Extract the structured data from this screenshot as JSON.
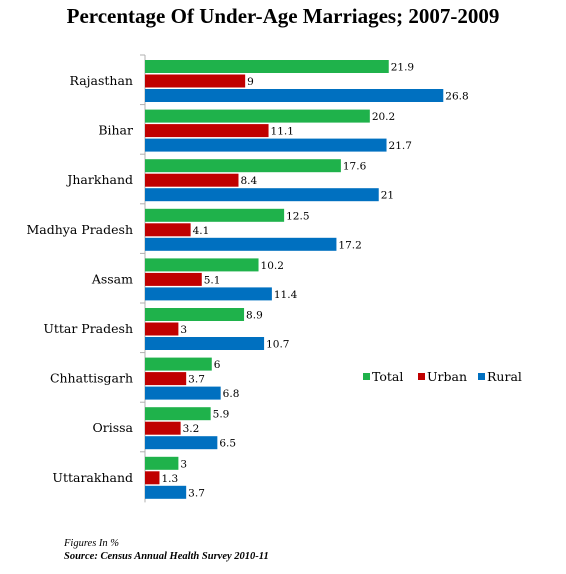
{
  "chart_data": {
    "type": "bar",
    "orientation": "horizontal",
    "title": "Percentage Of Under-Age Marriages; 2007-2009",
    "categories": [
      "Rajasthan",
      "Bihar",
      "Jharkhand",
      "Madhya Pradesh",
      "Assam",
      "Uttar Pradesh",
      "Chhattisgarh",
      "Orissa",
      "Uttarakhand"
    ],
    "series": [
      {
        "name": "Total",
        "color": "#1fb24b",
        "values": [
          21.9,
          20.2,
          17.6,
          12.5,
          10.2,
          8.9,
          6,
          5.9,
          3
        ]
      },
      {
        "name": "Urban",
        "color": "#c00000",
        "values": [
          9,
          11.1,
          8.4,
          4.1,
          5.1,
          3,
          3.7,
          3.2,
          1.3
        ]
      },
      {
        "name": "Rural",
        "color": "#0070c0",
        "values": [
          26.8,
          21.7,
          21,
          17.2,
          11.4,
          10.7,
          6.8,
          6.5,
          3.7
        ]
      }
    ],
    "value_labels": [
      [
        "21.9",
        "20.2",
        "17.6",
        "12.5",
        "10.2",
        "8.9",
        "6",
        "5.9",
        "3"
      ],
      [
        "9",
        "11.1",
        "8.4",
        "4.1",
        "5.1",
        "3",
        "3.7",
        "3.2",
        "1.3"
      ],
      [
        "26.8",
        "21.7",
        "21",
        "17.2",
        "11.4",
        "10.7",
        "6.8",
        "6.5",
        "3.7"
      ]
    ],
    "xlim": [
      0,
      30
    ],
    "grid": false,
    "legend_position": "right"
  },
  "notes": {
    "unit_note": "Figures In %",
    "source": "Source: Census Annual Health Survey 2010-11"
  }
}
